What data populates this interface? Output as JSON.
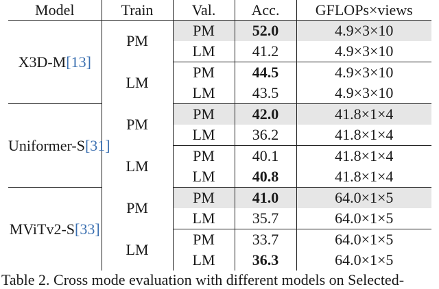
{
  "table": {
    "headers": [
      "Model",
      "Train",
      "Val.",
      "Acc.",
      "GFLOPs×views"
    ],
    "models": [
      {
        "name": "X3D-M",
        "ref": "[13]",
        "groups": [
          {
            "train": "PM",
            "rows": [
              {
                "val": "PM",
                "acc": "52.0",
                "bold": true,
                "highlight": true,
                "gflops": "4.9×3×10"
              },
              {
                "val": "LM",
                "acc": "41.2",
                "bold": false,
                "highlight": false,
                "gflops": "4.9×3×10"
              }
            ]
          },
          {
            "train": "LM",
            "rows": [
              {
                "val": "PM",
                "acc": "44.5",
                "bold": true,
                "highlight": false,
                "gflops": "4.9×3×10"
              },
              {
                "val": "LM",
                "acc": "43.5",
                "bold": false,
                "highlight": false,
                "gflops": "4.9×3×10"
              }
            ]
          }
        ]
      },
      {
        "name": "Uniformer-S",
        "ref": "[31]",
        "groups": [
          {
            "train": "PM",
            "rows": [
              {
                "val": "PM",
                "acc": "42.0",
                "bold": true,
                "highlight": true,
                "gflops": "41.8×1×4"
              },
              {
                "val": "LM",
                "acc": "36.2",
                "bold": false,
                "highlight": false,
                "gflops": "41.8×1×4"
              }
            ]
          },
          {
            "train": "LM",
            "rows": [
              {
                "val": "PM",
                "acc": "40.1",
                "bold": false,
                "highlight": false,
                "gflops": "41.8×1×4"
              },
              {
                "val": "LM",
                "acc": "40.8",
                "bold": true,
                "highlight": false,
                "gflops": "41.8×1×4"
              }
            ]
          }
        ]
      },
      {
        "name": "MViTv2-S",
        "ref": "[33]",
        "groups": [
          {
            "train": "PM",
            "rows": [
              {
                "val": "PM",
                "acc": "41.0",
                "bold": true,
                "highlight": true,
                "gflops": "64.0×1×5"
              },
              {
                "val": "LM",
                "acc": "35.7",
                "bold": false,
                "highlight": false,
                "gflops": "64.0×1×5"
              }
            ]
          },
          {
            "train": "LM",
            "rows": [
              {
                "val": "PM",
                "acc": "33.7",
                "bold": false,
                "highlight": false,
                "gflops": "64.0×1×5"
              },
              {
                "val": "LM",
                "acc": "36.3",
                "bold": true,
                "highlight": false,
                "gflops": "64.0×1×5"
              }
            ]
          }
        ]
      }
    ]
  },
  "caption": "Table 2. Cross mode evaluation with different models on Selected-"
}
